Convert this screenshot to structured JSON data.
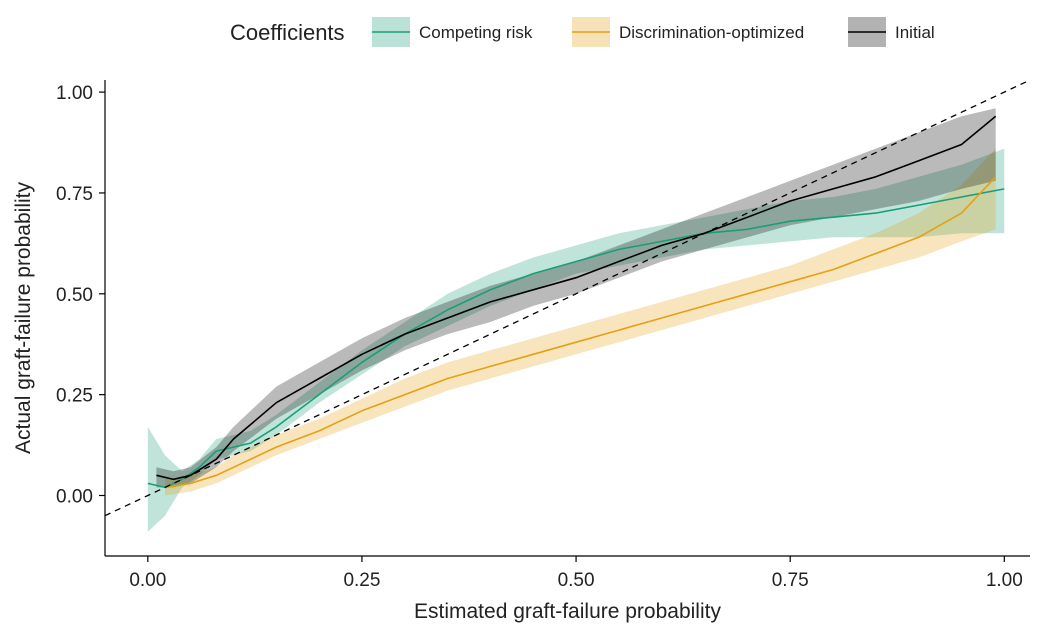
{
  "chart_data": {
    "type": "line",
    "title": "",
    "xlabel": "Estimated graft-failure probability",
    "ylabel": "Actual graft-failure probability",
    "xlim": [
      -0.05,
      1.03
    ],
    "ylim": [
      -0.15,
      1.03
    ],
    "xticks": [
      0.0,
      0.25,
      0.5,
      0.75,
      1.0
    ],
    "xtick_labels": [
      "0.00",
      "0.25",
      "0.50",
      "0.75",
      "1.00"
    ],
    "yticks": [
      0.0,
      0.25,
      0.5,
      0.75,
      1.0
    ],
    "ytick_labels": [
      "0.00",
      "0.25",
      "0.50",
      "0.75",
      "1.00"
    ],
    "grid": false,
    "legend": {
      "title": "Coefficients",
      "placement": "top",
      "entries": [
        "Competing risk",
        "Discrimination-optimized",
        "Initial"
      ]
    },
    "reference_line": {
      "style": "dashed",
      "color": "#000000",
      "x": [
        -0.05,
        1.03
      ],
      "y": [
        -0.05,
        1.03
      ]
    },
    "series": [
      {
        "name": "Competing risk",
        "color": "#1b9e77",
        "x": [
          0.0,
          0.02,
          0.04,
          0.06,
          0.08,
          0.1,
          0.12,
          0.15,
          0.2,
          0.25,
          0.3,
          0.35,
          0.4,
          0.45,
          0.5,
          0.55,
          0.6,
          0.65,
          0.7,
          0.75,
          0.8,
          0.85,
          0.9,
          0.95,
          1.0
        ],
        "y": [
          0.03,
          0.02,
          0.04,
          0.07,
          0.11,
          0.12,
          0.13,
          0.17,
          0.25,
          0.33,
          0.4,
          0.46,
          0.51,
          0.55,
          0.58,
          0.61,
          0.63,
          0.65,
          0.66,
          0.68,
          0.69,
          0.7,
          0.72,
          0.74,
          0.76
        ],
        "lower": [
          -0.09,
          -0.05,
          0.02,
          0.05,
          0.09,
          0.1,
          0.11,
          0.15,
          0.23,
          0.3,
          0.37,
          0.42,
          0.47,
          0.51,
          0.55,
          0.57,
          0.59,
          0.61,
          0.62,
          0.63,
          0.64,
          0.64,
          0.64,
          0.65,
          0.65
        ],
        "upper": [
          0.17,
          0.1,
          0.06,
          0.09,
          0.14,
          0.15,
          0.16,
          0.2,
          0.28,
          0.36,
          0.43,
          0.5,
          0.55,
          0.59,
          0.62,
          0.65,
          0.67,
          0.69,
          0.71,
          0.73,
          0.74,
          0.76,
          0.79,
          0.82,
          0.86
        ]
      },
      {
        "name": "Discrimination-optimized",
        "color": "#e6a014",
        "x": [
          0.02,
          0.05,
          0.08,
          0.1,
          0.15,
          0.2,
          0.25,
          0.3,
          0.35,
          0.4,
          0.45,
          0.5,
          0.55,
          0.6,
          0.65,
          0.7,
          0.75,
          0.8,
          0.85,
          0.9,
          0.95,
          0.99
        ],
        "y": [
          0.02,
          0.03,
          0.05,
          0.07,
          0.12,
          0.16,
          0.21,
          0.25,
          0.29,
          0.32,
          0.35,
          0.38,
          0.41,
          0.44,
          0.47,
          0.5,
          0.53,
          0.56,
          0.6,
          0.64,
          0.7,
          0.79
        ],
        "lower": [
          0.0,
          0.01,
          0.03,
          0.05,
          0.1,
          0.14,
          0.18,
          0.22,
          0.26,
          0.29,
          0.32,
          0.35,
          0.38,
          0.41,
          0.44,
          0.47,
          0.5,
          0.53,
          0.56,
          0.59,
          0.63,
          0.66
        ],
        "upper": [
          0.04,
          0.05,
          0.07,
          0.1,
          0.15,
          0.19,
          0.24,
          0.29,
          0.33,
          0.36,
          0.39,
          0.42,
          0.45,
          0.48,
          0.51,
          0.54,
          0.57,
          0.61,
          0.65,
          0.7,
          0.77,
          0.86
        ]
      },
      {
        "name": "Initial",
        "color": "#000000",
        "x": [
          0.01,
          0.03,
          0.05,
          0.08,
          0.1,
          0.15,
          0.2,
          0.25,
          0.3,
          0.35,
          0.4,
          0.45,
          0.5,
          0.55,
          0.6,
          0.65,
          0.7,
          0.75,
          0.8,
          0.85,
          0.9,
          0.95,
          0.99
        ],
        "y": [
          0.05,
          0.04,
          0.05,
          0.09,
          0.14,
          0.23,
          0.29,
          0.35,
          0.4,
          0.44,
          0.48,
          0.51,
          0.54,
          0.58,
          0.62,
          0.65,
          0.69,
          0.73,
          0.76,
          0.79,
          0.83,
          0.87,
          0.94
        ],
        "lower": [
          0.02,
          0.02,
          0.03,
          0.07,
          0.11,
          0.19,
          0.25,
          0.31,
          0.36,
          0.4,
          0.43,
          0.47,
          0.5,
          0.54,
          0.58,
          0.61,
          0.64,
          0.67,
          0.69,
          0.71,
          0.73,
          0.76,
          0.78
        ],
        "upper": [
          0.07,
          0.06,
          0.07,
          0.12,
          0.17,
          0.27,
          0.33,
          0.39,
          0.44,
          0.48,
          0.52,
          0.55,
          0.58,
          0.62,
          0.66,
          0.7,
          0.74,
          0.78,
          0.82,
          0.86,
          0.9,
          0.94,
          0.96
        ]
      }
    ]
  }
}
